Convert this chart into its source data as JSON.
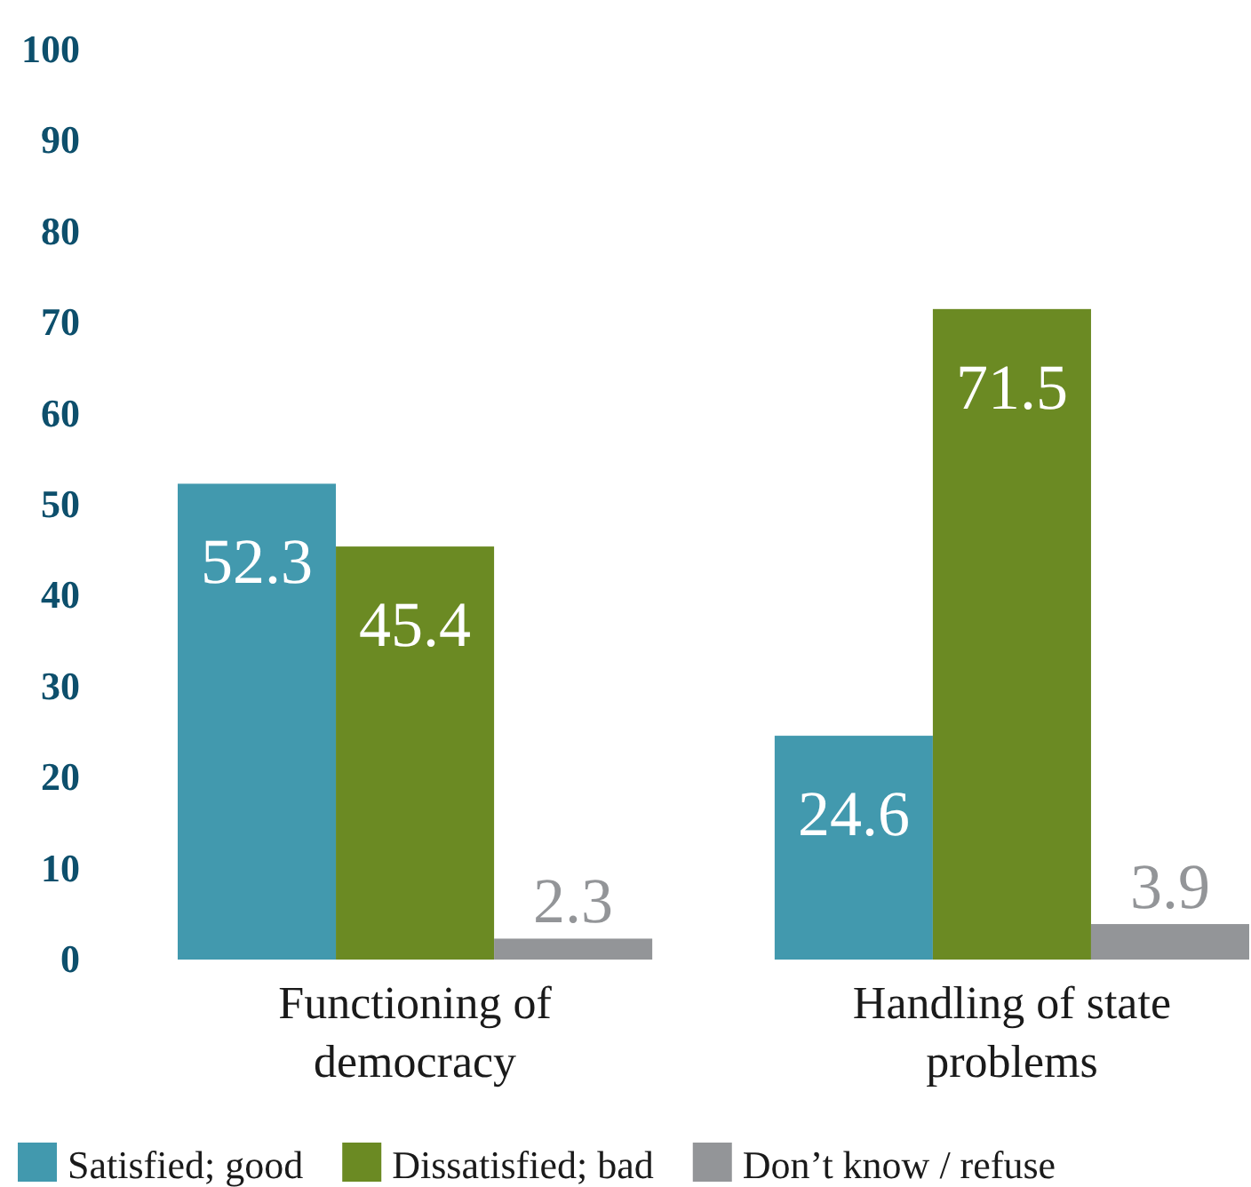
{
  "chart_data": {
    "type": "bar",
    "categories": [
      "Functioning of democracy",
      "Handling of state problems"
    ],
    "series": [
      {
        "name": "Satisfied; good",
        "color": "#4299ae",
        "values": [
          52.3,
          24.6
        ]
      },
      {
        "name": "Dissatisfied; bad",
        "color": "#6b8a23",
        "values": [
          45.4,
          71.5
        ]
      },
      {
        "name": "Don’t know / refuse",
        "color": "#939598",
        "values": [
          2.3,
          3.9
        ]
      }
    ],
    "ylim": [
      0,
      100
    ],
    "yticks": [
      0,
      10,
      20,
      30,
      40,
      50,
      60,
      70,
      80,
      90,
      100
    ],
    "data_labels": true,
    "legend": "bottom",
    "grid": false
  }
}
